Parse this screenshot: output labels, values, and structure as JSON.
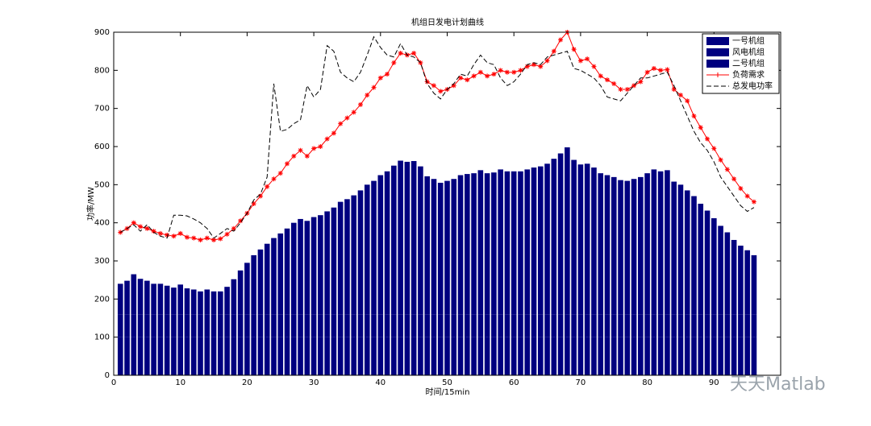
{
  "chart_data": {
    "type": "bar",
    "title": "机组日发电计划曲线",
    "x_label": "时间/15min",
    "y_label": "功率/MW",
    "watermark": "天天Matlab",
    "legend": "upper right",
    "stacked": true,
    "x": [
      1,
      2,
      3,
      4,
      5,
      6,
      7,
      8,
      9,
      10,
      11,
      12,
      13,
      14,
      15,
      16,
      17,
      18,
      19,
      20,
      21,
      22,
      23,
      24,
      25,
      26,
      27,
      28,
      29,
      30,
      31,
      32,
      33,
      34,
      35,
      36,
      37,
      38,
      39,
      40,
      41,
      42,
      43,
      44,
      45,
      46,
      47,
      48,
      49,
      50,
      51,
      52,
      53,
      54,
      55,
      56,
      57,
      58,
      59,
      60,
      61,
      62,
      63,
      64,
      65,
      66,
      67,
      68,
      69,
      70,
      71,
      72,
      73,
      74,
      75,
      76,
      77,
      78,
      79,
      80,
      81,
      82,
      83,
      84,
      85,
      86,
      87,
      88,
      89,
      90,
      91,
      92,
      93,
      94,
      95,
      96
    ],
    "xlim": [
      0,
      100
    ],
    "xticks": [
      0,
      10,
      20,
      30,
      40,
      50,
      60,
      70,
      80,
      90
    ],
    "ylim": [
      0,
      900
    ],
    "yticks": [
      0,
      100,
      200,
      300,
      400,
      500,
      600,
      700,
      800,
      900
    ],
    "series": [
      {
        "name": "一号机组",
        "kind": "bar",
        "color": "#00007f",
        "values": [
          100,
          100,
          100,
          100,
          100,
          100,
          100,
          100,
          100,
          100,
          100,
          100,
          100,
          100,
          100,
          100,
          100,
          100,
          100,
          100,
          100,
          100,
          100,
          100,
          100,
          100,
          100,
          100,
          100,
          100,
          100,
          100,
          100,
          100,
          100,
          100,
          100,
          100,
          100,
          100,
          100,
          100,
          100,
          100,
          100,
          100,
          100,
          100,
          100,
          100,
          100,
          100,
          100,
          100,
          100,
          100,
          100,
          100,
          100,
          100,
          100,
          100,
          100,
          100,
          100,
          100,
          100,
          100,
          100,
          100,
          100,
          100,
          100,
          100,
          100,
          100,
          100,
          100,
          100,
          100,
          100,
          100,
          100,
          100,
          100,
          100,
          100,
          100,
          100,
          100,
          100,
          100,
          100,
          100,
          100,
          100
        ]
      },
      {
        "name": "风电机组",
        "kind": "bar",
        "color": "#00007f",
        "values": [
          60,
          60,
          60,
          60,
          60,
          60,
          60,
          60,
          60,
          60,
          60,
          60,
          60,
          60,
          60,
          60,
          60,
          60,
          60,
          60,
          60,
          60,
          60,
          60,
          60,
          60,
          60,
          60,
          60,
          60,
          60,
          60,
          60,
          60,
          60,
          60,
          60,
          60,
          60,
          60,
          60,
          60,
          60,
          60,
          60,
          60,
          60,
          60,
          60,
          60,
          60,
          60,
          60,
          60,
          60,
          60,
          60,
          60,
          60,
          60,
          60,
          60,
          60,
          60,
          60,
          60,
          60,
          60,
          60,
          60,
          60,
          60,
          60,
          60,
          60,
          60,
          60,
          60,
          60,
          60,
          60,
          60,
          60,
          60,
          60,
          60,
          60,
          60,
          60,
          60,
          60,
          60,
          60,
          60,
          60,
          60
        ]
      },
      {
        "name": "二号机组",
        "kind": "bar",
        "color": "#00007f",
        "values": [
          80,
          88,
          105,
          93,
          88,
          80,
          80,
          75,
          70,
          78,
          68,
          65,
          60,
          65,
          60,
          60,
          72,
          92,
          115,
          135,
          155,
          170,
          185,
          200,
          212,
          225,
          240,
          250,
          245,
          255,
          260,
          270,
          280,
          295,
          302,
          312,
          325,
          340,
          350,
          365,
          375,
          390,
          403,
          400,
          402,
          388,
          362,
          355,
          345,
          350,
          355,
          365,
          368,
          370,
          378,
          370,
          372,
          380,
          375,
          375,
          375,
          380,
          385,
          388,
          395,
          408,
          422,
          438,
          405,
          393,
          395,
          385,
          370,
          365,
          360,
          352,
          350,
          355,
          360,
          370,
          380,
          375,
          378,
          348,
          340,
          325,
          310,
          290,
          272,
          252,
          232,
          215,
          195,
          180,
          168,
          155
        ]
      },
      {
        "name": "负荷需求",
        "kind": "line",
        "color": "#ff0000",
        "marker": "star",
        "values": [
          375,
          385,
          400,
          390,
          385,
          378,
          372,
          368,
          365,
          372,
          362,
          360,
          355,
          360,
          355,
          358,
          370,
          385,
          405,
          425,
          450,
          470,
          495,
          515,
          530,
          555,
          575,
          590,
          575,
          595,
          600,
          620,
          635,
          660,
          675,
          690,
          710,
          735,
          755,
          780,
          790,
          820,
          845,
          840,
          845,
          820,
          770,
          760,
          745,
          750,
          760,
          780,
          775,
          785,
          795,
          785,
          790,
          800,
          795,
          795,
          800,
          810,
          815,
          810,
          825,
          850,
          880,
          900,
          855,
          825,
          830,
          810,
          785,
          775,
          765,
          750,
          750,
          760,
          770,
          795,
          805,
          800,
          802,
          750,
          735,
          720,
          680,
          650,
          620,
          595,
          565,
          540,
          515,
          490,
          470,
          455
        ]
      },
      {
        "name": "总发电功率",
        "kind": "line",
        "color": "#000000",
        "dash": "dashed",
        "values": [
          375,
          385,
          395,
          378,
          395,
          375,
          365,
          360,
          420,
          420,
          418,
          410,
          400,
          385,
          360,
          372,
          385,
          378,
          400,
          425,
          460,
          475,
          520,
          765,
          640,
          645,
          660,
          670,
          760,
          730,
          750,
          865,
          850,
          795,
          780,
          770,
          795,
          840,
          888,
          860,
          840,
          835,
          870,
          840,
          835,
          820,
          765,
          740,
          725,
          750,
          765,
          790,
          785,
          815,
          840,
          820,
          815,
          780,
          760,
          770,
          790,
          815,
          820,
          815,
          835,
          840,
          845,
          850,
          805,
          800,
          790,
          780,
          760,
          730,
          725,
          720,
          740,
          760,
          780,
          780,
          785,
          790,
          795,
          760,
          720,
          680,
          640,
          610,
          590,
          560,
          520,
          495,
          470,
          445,
          430,
          440
        ]
      }
    ]
  }
}
